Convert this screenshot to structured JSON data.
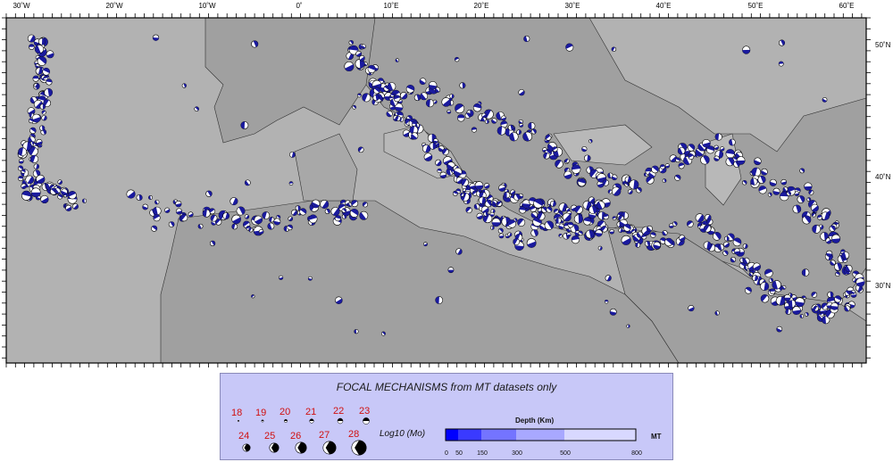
{
  "map": {
    "lon_labels": [
      "30˚W",
      "20˚W",
      "10˚W",
      "0˚",
      "10˚E",
      "20˚E",
      "30˚E",
      "40˚E",
      "50˚E",
      "60˚E"
    ],
    "lat_labels": [
      "50˚N",
      "40˚N",
      "30˚N"
    ],
    "colors": {
      "ocean": "#b4b4b4",
      "land": "#9d9d9d",
      "marker_fill": "#1a1a9e",
      "marker_stroke": "#000000"
    }
  },
  "legend": {
    "title": "FOCAL MECHANISMS from MT datasets only",
    "magnitudes_top": [
      "18",
      "19",
      "20",
      "21",
      "22",
      "23"
    ],
    "magnitudes_bottom": [
      "24",
      "25",
      "26",
      "27",
      "28"
    ],
    "magnitude_axis_label": "Log10 (Mo)",
    "depth_title": "Depth (Km)",
    "depth_unit": "MT",
    "depth_ticks": [
      "0",
      "50",
      "150",
      "300",
      "500",
      "800"
    ],
    "depth_colors": [
      "#0000ff",
      "#3a3aff",
      "#7474ff",
      "#a8a8ff",
      "#d8d8ff",
      "#ffffff"
    ]
  }
}
